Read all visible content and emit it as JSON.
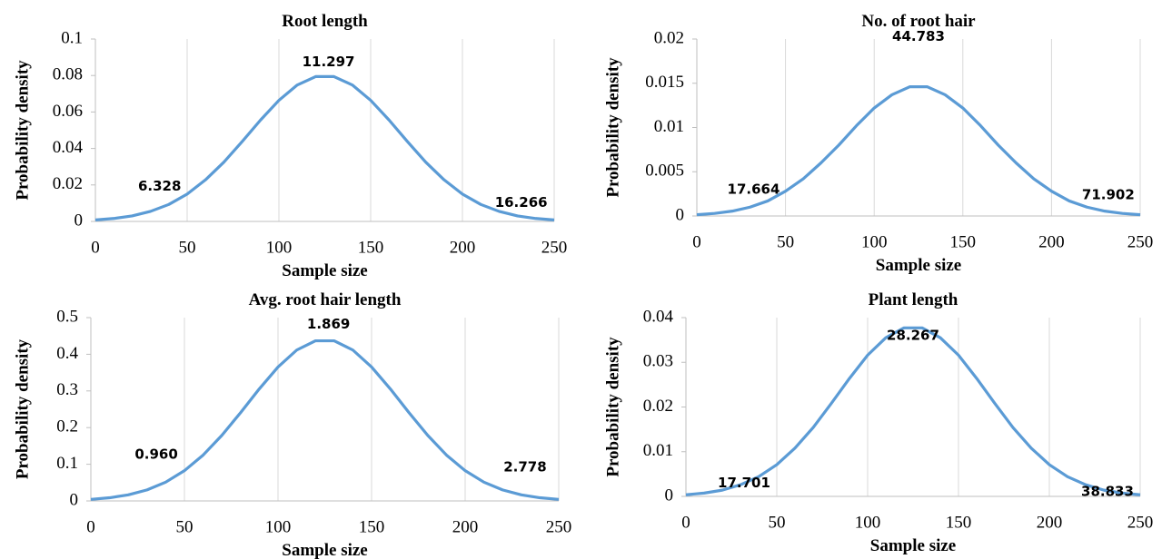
{
  "chart_data": [
    {
      "type": "line",
      "title": "Root length",
      "x_label": "Sample size",
      "y_label": "Probability density",
      "x": [
        0,
        10,
        20,
        30,
        40,
        50,
        60,
        70,
        80,
        90,
        100,
        110,
        120,
        130,
        140,
        150,
        160,
        170,
        180,
        190,
        200,
        210,
        220,
        230,
        240,
        250
      ],
      "series": [
        {
          "name": "Root length",
          "color": "#5b9bd5",
          "values": [
            0.0008,
            0.0016,
            0.003,
            0.0055,
            0.0093,
            0.015,
            0.0228,
            0.0325,
            0.0438,
            0.0556,
            0.0664,
            0.0748,
            0.0794,
            0.0794,
            0.0748,
            0.0664,
            0.0556,
            0.0438,
            0.0325,
            0.0228,
            0.015,
            0.0093,
            0.0055,
            0.003,
            0.0016,
            0.0008
          ]
        }
      ],
      "annotations": [
        "6.328",
        "11.297",
        "16.266"
      ],
      "xlim": [
        0,
        250
      ],
      "xticks": [
        0,
        50,
        100,
        150,
        200,
        250
      ],
      "ylim": [
        0,
        0.1
      ],
      "yticks": [
        0,
        0.02,
        0.04,
        0.06,
        0.08,
        0.1
      ],
      "grid": true
    },
    {
      "type": "line",
      "title": "No. of root hair",
      "x_label": "Sample size",
      "y_label": "Probability density",
      "x": [
        0,
        10,
        20,
        30,
        40,
        50,
        60,
        70,
        80,
        90,
        100,
        110,
        120,
        130,
        140,
        150,
        160,
        170,
        180,
        190,
        200,
        210,
        220,
        230,
        240,
        250
      ],
      "series": [
        {
          "name": "No. of root hair",
          "color": "#5b9bd5",
          "values": [
            0.00014,
            0.00029,
            0.00055,
            0.001,
            0.0017,
            0.0028,
            0.0042,
            0.006,
            0.008,
            0.0102,
            0.0122,
            0.0137,
            0.0146,
            0.0146,
            0.0137,
            0.0122,
            0.0102,
            0.008,
            0.006,
            0.0042,
            0.0028,
            0.0017,
            0.001,
            0.00055,
            0.00029,
            0.00014
          ]
        }
      ],
      "annotations": [
        "17.664",
        "44.783",
        "71.902"
      ],
      "xlim": [
        0,
        250
      ],
      "xticks": [
        0,
        50,
        100,
        150,
        200,
        250
      ],
      "ylim": [
        0,
        0.02
      ],
      "yticks": [
        0,
        0.005,
        0.01,
        0.015,
        0.02
      ],
      "grid": true
    },
    {
      "type": "line",
      "title": "Avg. root hair length",
      "x_label": "Sample size",
      "y_label": "Probability density",
      "x": [
        0,
        10,
        20,
        30,
        40,
        50,
        60,
        70,
        80,
        90,
        100,
        110,
        120,
        130,
        140,
        150,
        160,
        170,
        180,
        190,
        200,
        210,
        220,
        230,
        240,
        250
      ],
      "series": [
        {
          "name": "Avg. root hair length",
          "color": "#5b9bd5",
          "values": [
            0.0042,
            0.0086,
            0.0165,
            0.03,
            0.0512,
            0.0825,
            0.1251,
            0.1789,
            0.2408,
            0.3056,
            0.3653,
            0.4115,
            0.4367,
            0.4367,
            0.4115,
            0.3653,
            0.3056,
            0.2408,
            0.1789,
            0.1251,
            0.0825,
            0.0512,
            0.03,
            0.0165,
            0.0086,
            0.0042
          ]
        }
      ],
      "annotations": [
        "0.960",
        "1.869",
        "2.778"
      ],
      "xlim": [
        0,
        250
      ],
      "xticks": [
        0,
        50,
        100,
        150,
        200,
        250
      ],
      "ylim": [
        0,
        0.5
      ],
      "yticks": [
        0,
        0.1,
        0.2,
        0.3,
        0.4,
        0.5
      ],
      "grid": true
    },
    {
      "type": "line",
      "title": "Plant length",
      "x_label": "Sample size",
      "y_label": "Probability density",
      "x": [
        0,
        10,
        20,
        30,
        40,
        50,
        60,
        70,
        80,
        90,
        100,
        110,
        120,
        130,
        140,
        150,
        160,
        170,
        180,
        190,
        200,
        210,
        220,
        230,
        240,
        250
      ],
      "series": [
        {
          "name": "Plant length",
          "color": "#5b9bd5",
          "values": [
            0.00036,
            0.00074,
            0.0014,
            0.0026,
            0.0044,
            0.0071,
            0.0108,
            0.0154,
            0.0208,
            0.0264,
            0.0316,
            0.0355,
            0.0377,
            0.0377,
            0.0355,
            0.0316,
            0.0264,
            0.0208,
            0.0154,
            0.0108,
            0.0071,
            0.0044,
            0.0026,
            0.0014,
            0.00074,
            0.00036
          ]
        }
      ],
      "annotations": [
        "17.701",
        "28.267",
        "38.833"
      ],
      "xlim": [
        0,
        250
      ],
      "xticks": [
        0,
        50,
        100,
        150,
        200,
        250
      ],
      "ylim": [
        0,
        0.04
      ],
      "yticks": [
        0,
        0.01,
        0.02,
        0.03,
        0.04
      ],
      "grid": true
    }
  ]
}
